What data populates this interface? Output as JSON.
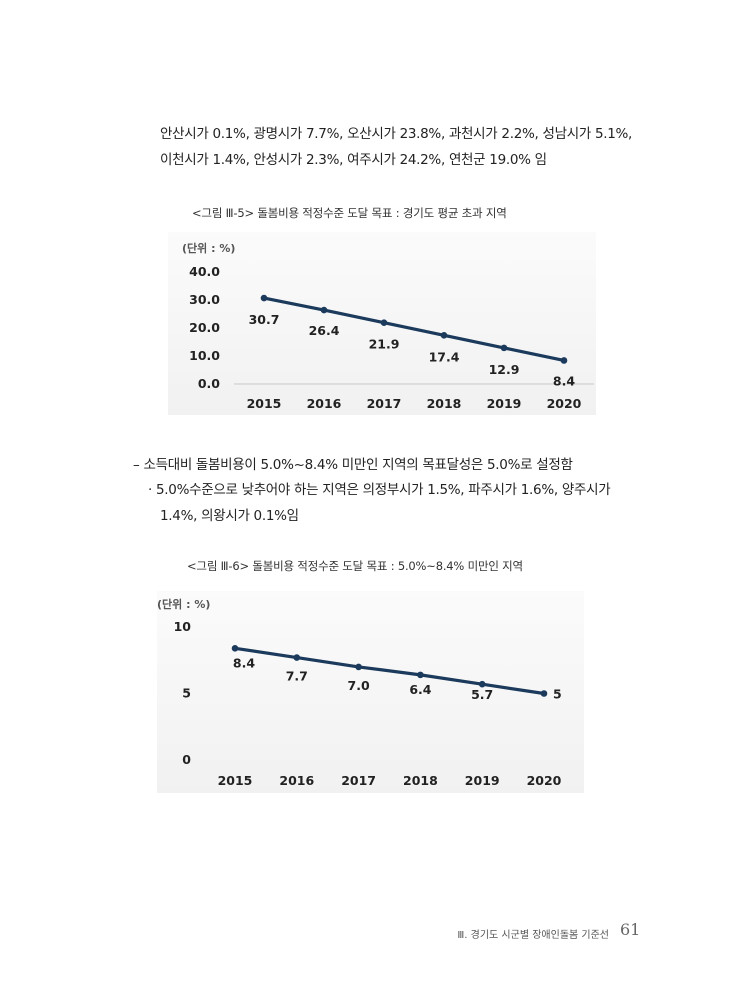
{
  "intro": {
    "line1": "안산시가 0.1%, 광명시가 7.7%, 오산시가 23.8%, 과천시가 2.2%, 성남시가 5.1%,",
    "line2": "이천시가 1.4%, 안성시가 2.3%, 여주시가 24.2%, 연천군 19.0% 임"
  },
  "figure1": {
    "caption": "<그림 Ⅲ-5> 돌봄비용 적정수준 도달 목표 : 경기도 평균 초과 지역"
  },
  "figure2": {
    "caption": "<그림 Ⅲ-6> 돌봄비용 적정수준 도달 목표 : 5.0%~8.4% 미만인 지역"
  },
  "bullets": {
    "dash_marker": "–",
    "dash_text": "소득대비 돌봄비용이 5.0%~8.4% 미만인 지역의 목표달성은 5.0%로 설정함",
    "dot_marker": "·",
    "dot_line1": "5.0%수준으로 낮추어야 하는 지역은 의정부시가 1.5%, 파주시가 1.6%, 양주시가",
    "dot_line2": "1.4%, 의왕시가 0.1%임"
  },
  "footer": {
    "text": "Ⅲ. 경기도 시군별 장애인돌봄 기준선",
    "page_number": "61"
  },
  "chart_data": [
    {
      "type": "line",
      "unit_label": "(단위 : %)",
      "categories": [
        "2015",
        "2016",
        "2017",
        "2018",
        "2019",
        "2020"
      ],
      "values": [
        30.7,
        26.4,
        21.9,
        17.4,
        12.9,
        8.4
      ],
      "data_labels": [
        "30.7",
        "26.4",
        "21.9",
        "17.4",
        "12.9",
        "8.4"
      ],
      "yticks": [
        "0.0",
        "10.0",
        "20.0",
        "30.0",
        "40.0"
      ],
      "ylim": [
        0,
        40
      ],
      "line_color": "#1b3a5c",
      "grid": false
    },
    {
      "type": "line",
      "unit_label": "(단위 : %)",
      "categories": [
        "2015",
        "2016",
        "2017",
        "2018",
        "2019",
        "2020"
      ],
      "values": [
        8.4,
        7.7,
        7.0,
        6.4,
        5.7,
        5
      ],
      "data_labels": [
        "8.4",
        "7.7",
        "7.0",
        "6.4",
        "5.7",
        "5"
      ],
      "yticks": [
        "0",
        "5",
        "10"
      ],
      "ylim": [
        0,
        10
      ],
      "line_color": "#1b3a5c",
      "grid": false
    }
  ]
}
